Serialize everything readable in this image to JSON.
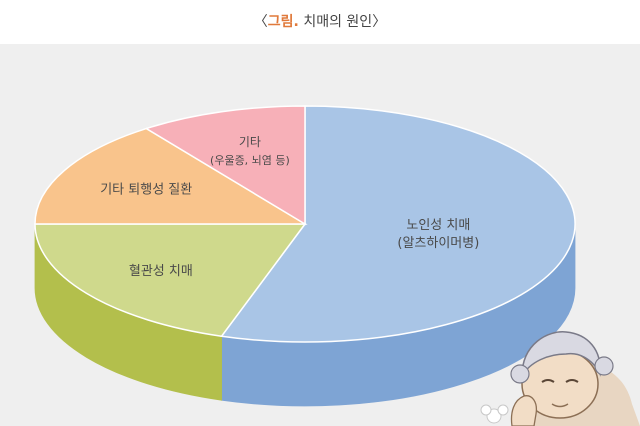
{
  "title": {
    "open": "〈",
    "accent": "그림.",
    "text": " 치매의 원인",
    "close": "〉"
  },
  "chart_data": {
    "type": "pie",
    "title": "〈그림. 치매의 원인〉",
    "slices": [
      {
        "label": "노인성 치매",
        "sublabel": "(알츠하이머병)",
        "value": 55
      },
      {
        "label": "혈관성 치매",
        "sublabel": "",
        "value": 20
      },
      {
        "label": "기타 퇴행성 질환",
        "sublabel": "",
        "value": 15
      },
      {
        "label": "기타",
        "sublabel": "(우울증, 뇌염 등)",
        "value": 10
      }
    ],
    "colors": {
      "top": [
        "#a9c5e6",
        "#cfd98c",
        "#f9c48c",
        "#f7b0b8"
      ],
      "side": [
        "#7ea4d4",
        "#b3bf4c",
        "#e9a566",
        "#e4939c"
      ]
    },
    "legend": "none"
  }
}
